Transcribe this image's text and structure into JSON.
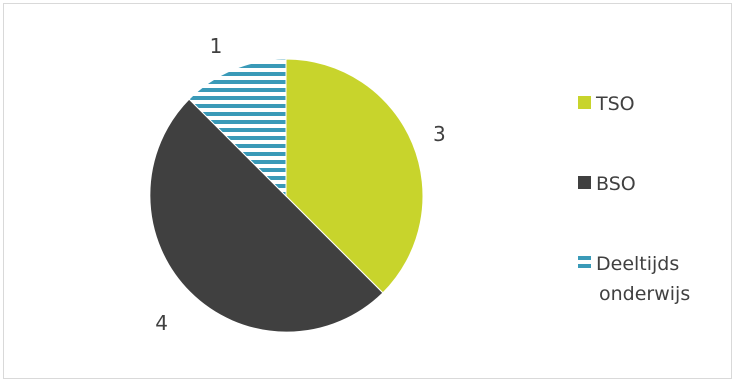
{
  "chart_data": {
    "type": "pie",
    "title": "",
    "categories": [
      "TSO",
      "BSO",
      "Deeltijds onderwijs"
    ],
    "values": [
      3,
      4,
      1
    ],
    "data_labels": [
      "3",
      "4",
      "1"
    ],
    "legend": {
      "placement": "right",
      "entries": [
        {
          "lines": [
            "TSO"
          ],
          "color": "#c8d42c",
          "pattern": "solid"
        },
        {
          "lines": [
            "BSO"
          ],
          "color": "#404040",
          "pattern": "solid"
        },
        {
          "lines": [
            "Deeltijds",
            "onderwijs"
          ],
          "color": "#3a9ab8",
          "pattern": "horizontal-stripes"
        }
      ]
    },
    "colors": {
      "TSO": "#c8d42c",
      "BSO": "#404040",
      "Deeltijds onderwijs": "#3a9ab8"
    },
    "start_angle_deg": 0,
    "direction": "clockwise"
  }
}
